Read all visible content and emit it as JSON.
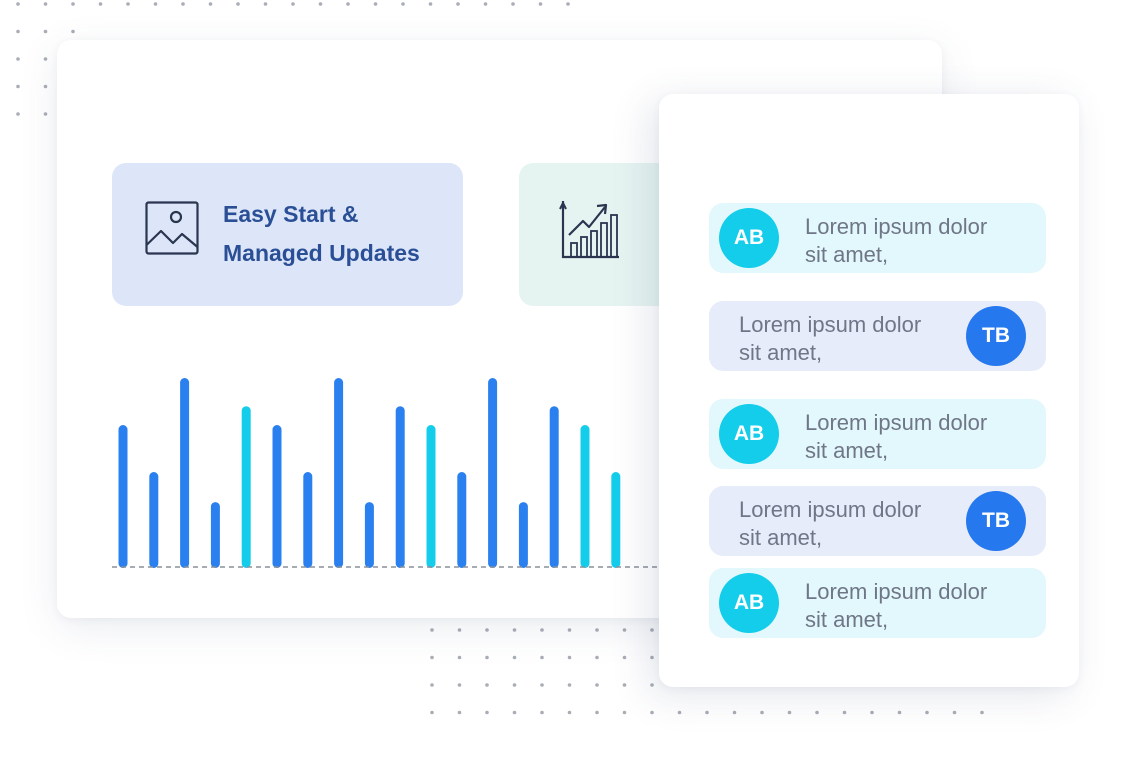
{
  "feature_cards": [
    {
      "icon": "image-icon",
      "title_lines": [
        "Easy Start &",
        "Managed Updates"
      ]
    },
    {
      "icon": "growth-chart-icon",
      "title_lines": []
    }
  ],
  "bar_chart": {
    "colors": {
      "primary": "#2b80ef",
      "accent": "#14cdeb",
      "baseline": "#8a8f99"
    },
    "values": [
      75,
      50,
      100,
      34,
      85,
      75,
      50,
      100,
      34,
      85,
      75,
      50,
      100,
      34,
      85,
      75,
      50
    ],
    "accent_flags": [
      false,
      false,
      false,
      false,
      true,
      false,
      false,
      false,
      false,
      false,
      true,
      false,
      false,
      false,
      false,
      true,
      true
    ]
  },
  "messages": [
    {
      "side": "left",
      "avatar": "AB",
      "lines": [
        "Lorem ipsum dolor",
        "sit amet,"
      ]
    },
    {
      "side": "right",
      "avatar": "TB",
      "lines": [
        "Lorem ipsum dolor",
        "sit amet,"
      ]
    },
    {
      "side": "left",
      "avatar": "AB",
      "lines": [
        "Lorem ipsum dolor",
        "sit amet,"
      ]
    },
    {
      "side": "right",
      "avatar": "TB",
      "lines": [
        "Lorem ipsum dolor",
        "sit amet,"
      ]
    },
    {
      "side": "left",
      "avatar": "AB",
      "lines": [
        "Lorem ipsum dolor",
        "sit amet,"
      ]
    }
  ]
}
